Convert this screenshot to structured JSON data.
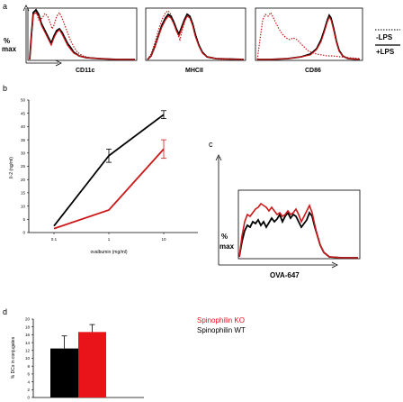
{
  "chart_data": [
    {
      "panel": "a",
      "type": "line",
      "ylabel": [
        "%",
        "max"
      ],
      "histograms": [
        {
          "xlabel": "CD11c"
        },
        {
          "xlabel": "MHCII"
        },
        {
          "xlabel": "CD86"
        }
      ],
      "legend": [
        {
          "name": "-LPS",
          "style": "dotted"
        },
        {
          "name": "+LPS",
          "style": "solid"
        }
      ]
    },
    {
      "panel": "b",
      "type": "line",
      "xlabel": "ovalbumin (mg/ml)",
      "ylabel": "Il-2 (ng/ml)",
      "x": [
        0.1,
        1,
        10
      ],
      "xticks": [
        "0.1",
        "1",
        "10"
      ],
      "xscale": "log",
      "ylim": [
        0,
        50
      ],
      "yticks": [
        0,
        5,
        10,
        15,
        20,
        25,
        30,
        35,
        40,
        45,
        50
      ],
      "series": [
        {
          "color": "#000000",
          "values": [
            2.5,
            29,
            44.5
          ],
          "errors": [
            0,
            2.5,
            1.5
          ]
        },
        {
          "color": "#cc1a1a",
          "values": [
            1.5,
            8.5,
            31.5
          ],
          "errors": [
            0,
            0,
            3.5
          ]
        }
      ]
    },
    {
      "panel": "c",
      "type": "line",
      "xlabel": "OVA-647",
      "ylabel": [
        "%",
        "max"
      ]
    },
    {
      "panel": "d",
      "type": "bar",
      "ylabel": "% DCs in conjugates",
      "ylim": [
        0,
        20
      ],
      "yticks": [
        0,
        2,
        4,
        6,
        8,
        10,
        12,
        14,
        16,
        18,
        20
      ],
      "categories": [
        "Spinophilin WT",
        "Spinophilin KO"
      ],
      "values": [
        12.5,
        16.7
      ],
      "errors": [
        3.2,
        1.9
      ],
      "colors": [
        "#000000",
        "#e8141a"
      ],
      "legend": [
        {
          "name": "Spinophilin KO",
          "color": "#e8141a"
        },
        {
          "name": "Spinophilin WT",
          "color": "#000000"
        }
      ]
    }
  ],
  "labels": {
    "a": "a",
    "b": "b",
    "c": "c",
    "d": "d"
  }
}
